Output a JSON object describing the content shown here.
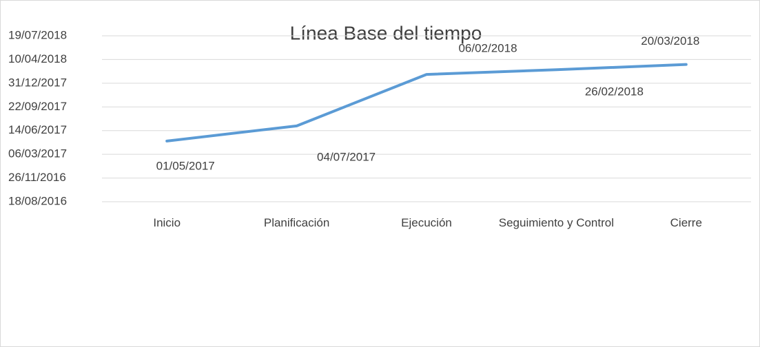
{
  "chart_data": {
    "type": "line",
    "title": "Línea Base del tiempo",
    "categories": [
      "Inicio",
      "Planificación",
      "Ejecución",
      "Seguimiento y Control",
      "Cierre"
    ],
    "series": [
      {
        "name": "Línea Base",
        "color": "#5b9bd5",
        "values": [
          42856,
          42920,
          43137,
          43157,
          43179
        ],
        "value_labels": [
          "01/05/2017",
          "04/07/2017",
          "06/02/2018",
          "26/02/2018",
          "20/03/2018"
        ]
      }
    ],
    "ylim": [
      42600,
      43300
    ],
    "yticks": [
      {
        "value": 42600,
        "label": "18/08/2016"
      },
      {
        "value": 42700,
        "label": "26/11/2016"
      },
      {
        "value": 42800,
        "label": "06/03/2017"
      },
      {
        "value": 42900,
        "label": "14/06/2017"
      },
      {
        "value": 43000,
        "label": "22/09/2017"
      },
      {
        "value": 43100,
        "label": "31/12/2017"
      },
      {
        "value": 43200,
        "label": "10/04/2018"
      },
      {
        "value": 43300,
        "label": "19/07/2018"
      }
    ],
    "grid": true
  }
}
